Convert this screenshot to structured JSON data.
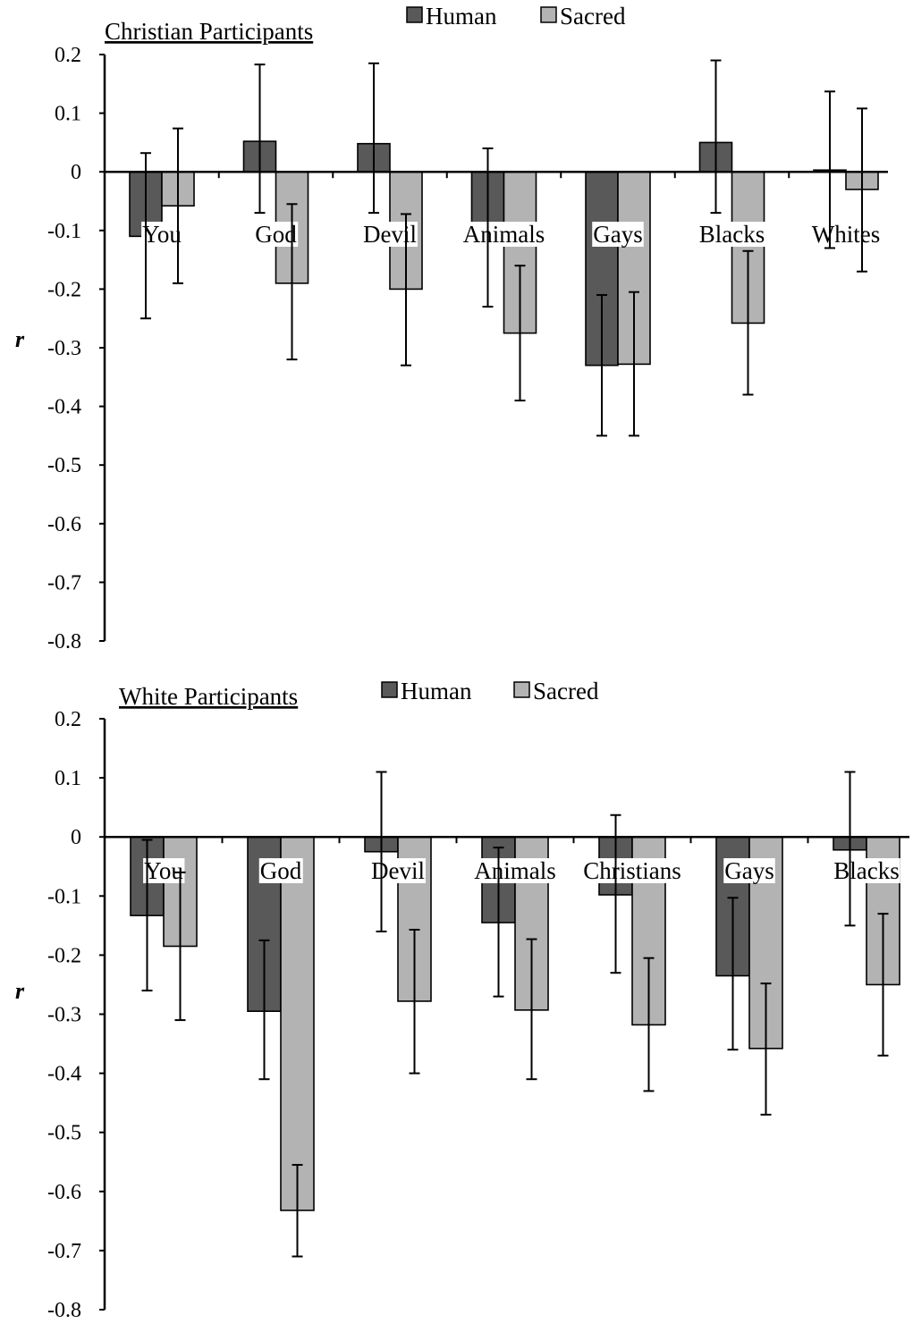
{
  "chart_data": [
    {
      "type": "bar",
      "title": "Christian Participants",
      "ylabel": "r",
      "ylim": [
        -0.8,
        0.2
      ],
      "yticks": [
        "0.2",
        "0.1",
        "0",
        "-0.1",
        "-0.2",
        "-0.3",
        "-0.4",
        "-0.5",
        "-0.6",
        "-0.7",
        "-0.8"
      ],
      "categories": [
        "You",
        "God",
        "Devil",
        "Animals",
        "Gays",
        "Blacks",
        "Whites"
      ],
      "legend": {
        "position": "top-center"
      },
      "series": [
        {
          "name": "Human",
          "color": "#595959",
          "values": [
            -0.11,
            0.052,
            0.048,
            -0.095,
            -0.33,
            0.05,
            0.003
          ],
          "error_low": [
            -0.25,
            -0.07,
            -0.07,
            -0.23,
            -0.45,
            -0.07,
            -0.13
          ],
          "error_high": [
            0.032,
            0.183,
            0.185,
            0.04,
            -0.21,
            0.19,
            0.137
          ]
        },
        {
          "name": "Sacred",
          "color": "#b3b3b3",
          "values": [
            -0.058,
            -0.19,
            -0.2,
            -0.275,
            -0.328,
            -0.258,
            -0.03
          ],
          "error_low": [
            -0.19,
            -0.32,
            -0.33,
            -0.39,
            -0.45,
            -0.38,
            -0.17
          ],
          "error_high": [
            0.074,
            -0.055,
            -0.072,
            -0.16,
            -0.205,
            -0.135,
            0.108
          ]
        }
      ]
    },
    {
      "type": "bar",
      "title": "White Participants",
      "ylabel": "r",
      "ylim": [
        -0.8,
        0.2
      ],
      "yticks": [
        "0.2",
        "0.1",
        "0",
        "-0.1",
        "-0.2",
        "-0.3",
        "-0.4",
        "-0.5",
        "-0.6",
        "-0.7",
        "-0.8"
      ],
      "categories": [
        "You",
        "God",
        "Devil",
        "Animals",
        "Christians",
        "Gays",
        "Blacks"
      ],
      "legend": {
        "position": "top-center"
      },
      "series": [
        {
          "name": "Human",
          "color": "#595959",
          "values": [
            -0.133,
            -0.295,
            -0.025,
            -0.145,
            -0.098,
            -0.235,
            -0.022
          ],
          "error_low": [
            -0.26,
            -0.41,
            -0.16,
            -0.27,
            -0.23,
            -0.36,
            -0.15
          ],
          "error_high": [
            -0.005,
            -0.175,
            0.11,
            -0.018,
            0.037,
            -0.103,
            0.11
          ]
        },
        {
          "name": "Sacred",
          "color": "#b3b3b3",
          "values": [
            -0.185,
            -0.632,
            -0.278,
            -0.293,
            -0.318,
            -0.358,
            -0.25
          ],
          "error_low": [
            -0.31,
            -0.71,
            -0.4,
            -0.41,
            -0.43,
            -0.47,
            -0.37
          ],
          "error_high": [
            -0.06,
            -0.555,
            -0.157,
            -0.173,
            -0.205,
            -0.248,
            -0.13
          ]
        }
      ]
    }
  ]
}
